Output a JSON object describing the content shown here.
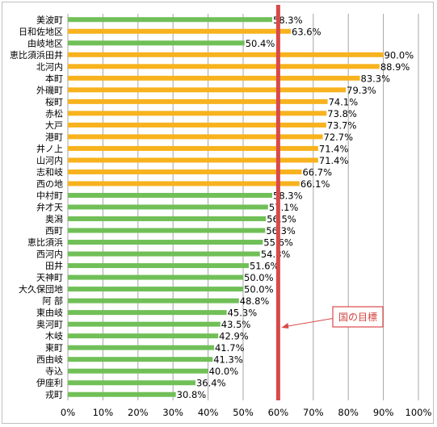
{
  "chart_data": {
    "type": "bar",
    "orientation": "horizontal",
    "title": "",
    "xlabel": "",
    "ylabel": "",
    "xlim": [
      0,
      100
    ],
    "x_ticks": [
      "0%",
      "10%",
      "20%",
      "30%",
      "40%",
      "50%",
      "60%",
      "70%",
      "80%",
      "90%",
      "100%"
    ],
    "grid": "vertical",
    "categories": [
      "美波町",
      "日和佐地区",
      "由岐地区",
      "恵比須浜田井",
      "北河内",
      "本町",
      "外磯町",
      "桜町",
      "赤松",
      "大戸",
      "港町",
      "井ノ上",
      "山河内",
      "志和岐",
      "西の地",
      "中村町",
      "弁才天",
      "奥潟",
      "西町",
      "恵比須浜",
      "西河内",
      "田井",
      "天神町",
      "大久保団地",
      "阿 部",
      "東由岐",
      "奥河町",
      "木岐",
      "東町",
      "西由岐",
      "寺込",
      "伊座利",
      "戎町"
    ],
    "values": [
      58.3,
      63.6,
      50.4,
      90.0,
      88.9,
      83.3,
      79.3,
      74.1,
      73.8,
      73.7,
      72.7,
      71.4,
      71.4,
      66.7,
      66.1,
      58.3,
      57.1,
      56.5,
      56.3,
      55.6,
      54.8,
      51.6,
      50.0,
      50.0,
      48.8,
      45.3,
      43.5,
      42.9,
      41.7,
      41.3,
      40.0,
      36.4,
      30.8
    ],
    "value_labels": [
      "58.3%",
      "63.6%",
      "50.4%",
      "90.0%",
      "88.9%",
      "83.3%",
      "79.3%",
      "74.1%",
      "73.8%",
      "73.7%",
      "72.7%",
      "71.4%",
      "71.4%",
      "66.7%",
      "66.1%",
      "58.3%",
      "57.1%",
      "56.5%",
      "56.3%",
      "55.6%",
      "54.8%",
      "51.6%",
      "50.0%",
      "50.0%",
      "48.8%",
      "45.3%",
      "43.5%",
      "42.9%",
      "41.7%",
      "41.3%",
      "40.0%",
      "36.4%",
      "30.8%"
    ],
    "bar_colors": [
      "green",
      "orange",
      "green",
      "orange",
      "orange",
      "orange",
      "orange",
      "orange",
      "orange",
      "orange",
      "orange",
      "orange",
      "orange",
      "orange",
      "orange",
      "green",
      "green",
      "green",
      "green",
      "green",
      "green",
      "green",
      "green",
      "green",
      "green",
      "green",
      "green",
      "green",
      "green",
      "green",
      "green",
      "green",
      "green"
    ],
    "colors": {
      "green": "#70bf57",
      "orange": "#f7b21e",
      "target": "#d9494a",
      "grid": "#a6a6a6"
    },
    "target_line": {
      "value": 60,
      "label": "国の目標"
    }
  }
}
